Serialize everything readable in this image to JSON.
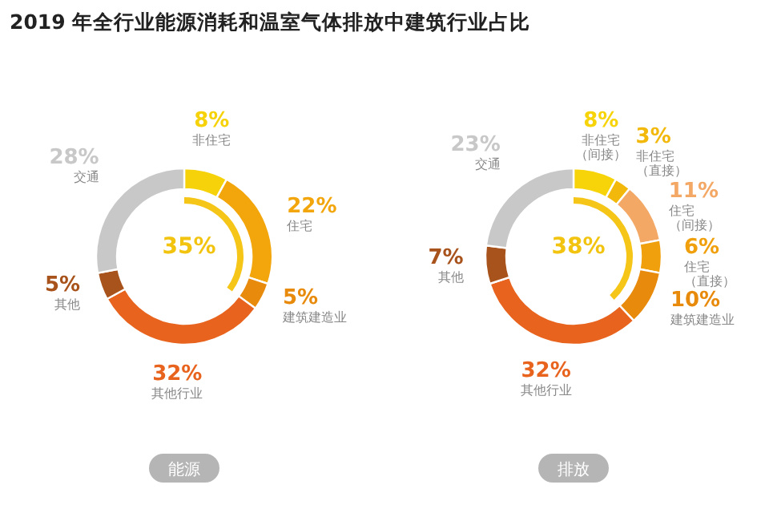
{
  "chart_data": [
    {
      "type": "donut",
      "title": "2019 年全行业能源消耗和温室气体排放中建筑行业占比",
      "xlabel": "能源",
      "categories": [
        "非住宅",
        "住宅",
        "建筑建造业",
        "其他行业",
        "其他",
        "交通"
      ],
      "values": [
        8,
        22,
        5,
        32,
        5,
        28
      ],
      "value_labels": [
        "8%",
        "22%",
        "5%",
        "32%",
        "5%",
        "28%"
      ],
      "colors": [
        "#f6d20a",
        "#f2a60c",
        "#e88a0c",
        "#e8641e",
        "#a8521c",
        "#c8c8c8"
      ],
      "annotations": [
        {
          "text": "35%"
        }
      ]
    },
    {
      "type": "donut",
      "xlabel": "排放",
      "categories": [
        "非住宅（间接）",
        "非住宅（直接）",
        "住宅（间接）",
        "住宅（直接）",
        "建筑建造业",
        "其他行业",
        "其他",
        "交通"
      ],
      "values": [
        8,
        3,
        11,
        6,
        10,
        32,
        7,
        23
      ],
      "value_labels": [
        "8%",
        "3%",
        "11%",
        "6%",
        "10%",
        "32%",
        "7%",
        "23%"
      ],
      "colors": [
        "#f7d40a",
        "#f2b90c",
        "#f3a866",
        "#f0a00c",
        "#e88a0c",
        "#e8641e",
        "#a8521c",
        "#c8c8c8"
      ],
      "annotations": [
        {
          "text": "38%"
        }
      ]
    }
  ]
}
